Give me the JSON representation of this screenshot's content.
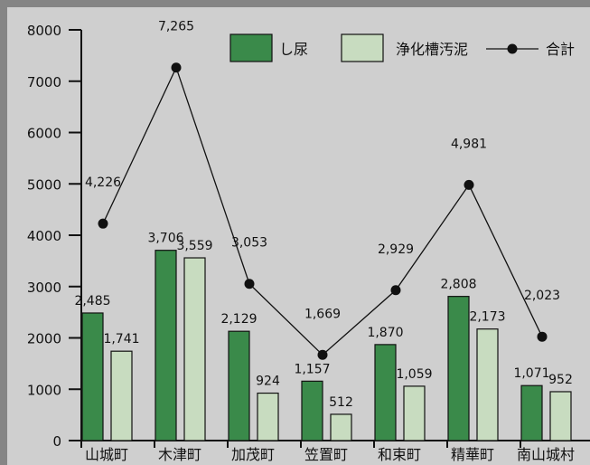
{
  "chart_data": {
    "type": "bar",
    "categories": [
      "山城町",
      "木津町",
      "加茂町",
      "笠置町",
      "和束町",
      "精華町",
      "南山城村"
    ],
    "series": [
      {
        "name": "し尿",
        "values": [
          2485,
          3706,
          2129,
          1157,
          1870,
          2808,
          1071
        ],
        "labels": [
          "2,485",
          "3,706",
          "2,129",
          "1,157",
          "1,870",
          "2,808",
          "1,071"
        ],
        "color": "#3a8a4a"
      },
      {
        "name": "浄化槽汚泥",
        "values": [
          1741,
          3559,
          924,
          512,
          1059,
          2173,
          952
        ],
        "labels": [
          "1,741",
          "3,559",
          "924",
          "512",
          "1,059",
          "2,173",
          "952"
        ],
        "color": "#c8dcc0"
      },
      {
        "name": "合計",
        "type": "line",
        "values": [
          4226,
          7265,
          3053,
          1669,
          2929,
          4981,
          2023
        ],
        "labels": [
          "4,226",
          "7,265",
          "3,053",
          "1,669",
          "2,929",
          "4,981",
          "2,023"
        ],
        "color": "#111111"
      }
    ],
    "ylim": [
      0,
      8000
    ],
    "yticks": [
      0,
      1000,
      2000,
      3000,
      4000,
      5000,
      6000,
      7000,
      8000
    ],
    "ytick_labels": [
      "0",
      "1000",
      "2000",
      "3000",
      "4000",
      "5000",
      "6000",
      "7000",
      "8000"
    ],
    "legend_position": "top-right",
    "grid": false
  },
  "colors": {
    "background": "#858585",
    "panel": "#cfcfcf",
    "axis": "#111111"
  }
}
